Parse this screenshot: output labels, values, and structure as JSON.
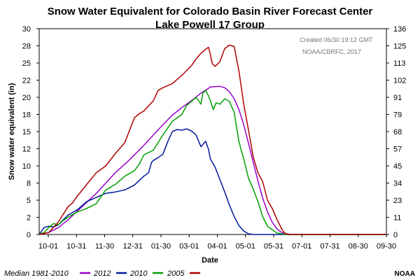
{
  "chart_data": {
    "type": "line",
    "title": "Snow Water Equivalent for Colorado Basin River Forecast Center",
    "subtitle": "Lake Powell 17 Group",
    "ylabel": "Snow water equivalent (in)",
    "xlabel": "Date",
    "ylim": [
      0,
      30
    ],
    "y_ticks": [
      0,
      2,
      5,
      8,
      10,
      12,
      15,
      18,
      20,
      22,
      25,
      28,
      30
    ],
    "y2_ticks": [
      "0",
      "11",
      "23",
      "34",
      "45",
      "57",
      "68",
      "79",
      "91",
      "102",
      "113",
      "125",
      "136"
    ],
    "x_tick_labels": [
      "10-01",
      "10-31",
      "11-30",
      "12-31",
      "01-30",
      "03-01",
      "04-01",
      "05-01",
      "05-31",
      "07-01",
      "07-31",
      "08-30",
      "09-30"
    ],
    "x_range_days": [
      0,
      365
    ],
    "grid": false,
    "legend_placement": "bottom",
    "annotations": [
      "Created 06/30 19:12 GMT",
      "NOAA/CBRFC, 2017"
    ],
    "credit": "NOAA",
    "series": [
      {
        "name": "Median 1981-2010",
        "color": "#9900cc",
        "x": [
          0,
          10,
          20,
          30,
          40,
          50,
          60,
          70,
          80,
          92,
          100,
          110,
          120,
          130,
          140,
          150,
          160,
          170,
          180,
          190,
          195,
          200,
          205,
          210,
          215,
          220,
          225,
          230,
          235,
          240,
          245,
          250,
          255,
          260,
          265,
          270,
          280,
          365
        ],
        "y": [
          0.0,
          0.3,
          1.0,
          2.1,
          3.4,
          4.7,
          6.0,
          7.5,
          9.0,
          10.5,
          11.6,
          13.0,
          14.5,
          16.0,
          17.4,
          18.5,
          19.5,
          20.6,
          21.5,
          21.6,
          21.4,
          20.8,
          19.8,
          18.2,
          16.0,
          13.3,
          10.5,
          7.8,
          5.3,
          3.3,
          1.8,
          0.8,
          0.3,
          0.1,
          0.0,
          0.0,
          0.0,
          0.0
        ]
      },
      {
        "name": "2012",
        "color": "#001899",
        "x": [
          0,
          5,
          10,
          15,
          20,
          30,
          40,
          50,
          60,
          70,
          80,
          90,
          100,
          110,
          115,
          118,
          120,
          125,
          130,
          135,
          140,
          145,
          150,
          155,
          160,
          165,
          170,
          175,
          178,
          180,
          185,
          190,
          195,
          200,
          205,
          210,
          215,
          220,
          225,
          230,
          235,
          240,
          365
        ],
        "y": [
          0.0,
          1.0,
          1.2,
          1.1,
          1.4,
          2.8,
          3.6,
          4.8,
          5.4,
          6.0,
          6.2,
          6.5,
          7.2,
          8.5,
          9.0,
          10.5,
          10.8,
          11.2,
          11.7,
          13.5,
          15.0,
          15.3,
          15.2,
          15.4,
          15.1,
          14.5,
          12.8,
          13.6,
          12.4,
          11.0,
          9.8,
          8.0,
          6.2,
          4.3,
          2.6,
          1.3,
          0.5,
          0.1,
          0.0,
          0.0,
          0.0,
          0.0,
          0.0
        ]
      },
      {
        "name": "2010",
        "color": "#00a000",
        "x": [
          0,
          5,
          10,
          15,
          20,
          25,
          30,
          40,
          50,
          60,
          70,
          80,
          90,
          100,
          105,
          110,
          120,
          130,
          140,
          145,
          150,
          155,
          160,
          165,
          170,
          172,
          175,
          178,
          180,
          183,
          186,
          190,
          195,
          200,
          205,
          210,
          215,
          220,
          225,
          230,
          235,
          240,
          250,
          260,
          365
        ],
        "y": [
          0.0,
          0.3,
          1.0,
          1.6,
          1.4,
          2.0,
          2.5,
          3.3,
          3.8,
          4.5,
          6.5,
          7.3,
          8.5,
          9.3,
          10.2,
          11.6,
          12.3,
          14.5,
          16.5,
          17.0,
          17.5,
          18.8,
          19.4,
          20.0,
          19.0,
          20.6,
          21.0,
          20.2,
          19.5,
          18.2,
          19.2,
          19.0,
          19.8,
          19.4,
          17.8,
          13.5,
          11.0,
          8.2,
          6.6,
          4.8,
          2.6,
          1.2,
          0.2,
          0.0,
          0.0
        ]
      },
      {
        "name": "2005",
        "color": "#b00000",
        "x": [
          0,
          10,
          20,
          30,
          35,
          40,
          50,
          60,
          65,
          70,
          80,
          90,
          100,
          105,
          110,
          120,
          125,
          130,
          140,
          150,
          160,
          165,
          170,
          175,
          178,
          180,
          182,
          185,
          190,
          195,
          200,
          205,
          210,
          215,
          220,
          225,
          230,
          235,
          240,
          245,
          250,
          255,
          258,
          262,
          265,
          365
        ],
        "y": [
          0.0,
          0.3,
          1.8,
          4.0,
          4.6,
          5.6,
          7.3,
          9.0,
          9.5,
          10.0,
          11.8,
          13.4,
          17.0,
          17.6,
          18.0,
          19.5,
          21.0,
          21.4,
          22.0,
          23.2,
          24.6,
          25.6,
          26.4,
          27.0,
          27.3,
          26.2,
          24.9,
          24.5,
          25.2,
          27.1,
          27.6,
          27.4,
          23.8,
          19.0,
          15.2,
          11.3,
          9.0,
          7.7,
          5.0,
          3.8,
          2.2,
          0.8,
          0.2,
          0.0,
          0.0,
          0.0
        ]
      }
    ]
  }
}
